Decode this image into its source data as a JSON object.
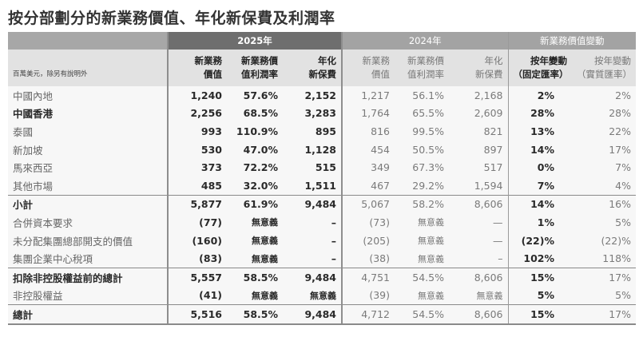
{
  "title": "按分部劃分的新業務價值、年化新保費及利潤率",
  "header": {
    "unit_note": "百萬美元，除另有說明外",
    "group_2025": "2025年",
    "group_2024": "2024年",
    "group_change": "新業務價值變動",
    "col_nbv_l1": "新業務",
    "col_nbv_l2": "價值",
    "col_margin_l1": "新業務價",
    "col_margin_l2": "值利潤率",
    "col_ape_l1": "年化",
    "col_ape_l2": "新保費",
    "col_cer_l1": "按年變動",
    "col_cer_l2": "（固定匯率）",
    "col_ar_l1": "按年變動",
    "col_ar_l2": "（實質匯率）"
  },
  "rows": [
    {
      "label": "中國內地",
      "nbv25": "1,240",
      "margin25": "57.6%",
      "ape25": "2,152",
      "nbv24": "1,217",
      "margin24": "56.1%",
      "ape24": "2,168",
      "chg_cer": "2%",
      "chg_ar": "2%"
    },
    {
      "label": "中國香港",
      "nbv25": "2,256",
      "margin25": "68.5%",
      "ape25": "3,283",
      "nbv24": "1,764",
      "margin24": "65.5%",
      "ape24": "2,609",
      "chg_cer": "28%",
      "chg_ar": "28%"
    },
    {
      "label": "泰國",
      "nbv25": "993",
      "margin25": "110.9%",
      "ape25": "895",
      "nbv24": "816",
      "margin24": "99.5%",
      "ape24": "821",
      "chg_cer": "13%",
      "chg_ar": "22%"
    },
    {
      "label": "新加坡",
      "nbv25": "530",
      "margin25": "47.0%",
      "ape25": "1,128",
      "nbv24": "454",
      "margin24": "50.5%",
      "ape24": "897",
      "chg_cer": "14%",
      "chg_ar": "17%"
    },
    {
      "label": "馬來西亞",
      "nbv25": "373",
      "margin25": "72.2%",
      "ape25": "515",
      "nbv24": "349",
      "margin24": "67.3%",
      "ape24": "517",
      "chg_cer": "0%",
      "chg_ar": "7%"
    },
    {
      "label": "其他市場",
      "nbv25": "485",
      "margin25": "32.0%",
      "ape25": "1,511",
      "nbv24": "467",
      "margin24": "29.2%",
      "ape24": "1,594",
      "chg_cer": "7%",
      "chg_ar": "4%"
    },
    {
      "label": "小計",
      "nbv25": "5,877",
      "margin25": "61.9%",
      "ape25": "9,484",
      "nbv24": "5,067",
      "margin24": "58.2%",
      "ape24": "8,606",
      "chg_cer": "14%",
      "chg_ar": "16%"
    },
    {
      "label": "合併資本要求",
      "nbv25": "(77)",
      "margin25": "無意義",
      "ape25": "–",
      "nbv24": "(73)",
      "margin24": "無意義",
      "ape24": "—",
      "chg_cer": "1%",
      "chg_ar": "5%"
    },
    {
      "label": "未分配集團總部開支的價值",
      "nbv25": "(160)",
      "margin25": "無意義",
      "ape25": "–",
      "nbv24": "(205)",
      "margin24": "無意義",
      "ape24": "—",
      "chg_cer": "(22)%",
      "chg_ar": "(22)%"
    },
    {
      "label": "集團企業中心稅項",
      "nbv25": "(83)",
      "margin25": "無意義",
      "ape25": "–",
      "nbv24": "(38)",
      "margin24": "無意義",
      "ape24": "–",
      "chg_cer": "102%",
      "chg_ar": "118%"
    },
    {
      "label": "扣除非控股權益前的總計",
      "nbv25": "5,557",
      "margin25": "58.5%",
      "ape25": "9,484",
      "nbv24": "4,751",
      "margin24": "54.5%",
      "ape24": "8,606",
      "chg_cer": "15%",
      "chg_ar": "17%"
    },
    {
      "label": "非控股權益",
      "nbv25": "(41)",
      "margin25": "無意義",
      "ape25": "無意義",
      "nbv24": "(39)",
      "margin24": "無意義",
      "ape24": "無意義",
      "chg_cer": "5%",
      "chg_ar": "5%"
    },
    {
      "label": "總計",
      "nbv25": "5,516",
      "margin25": "58.5%",
      "ape25": "9,484",
      "nbv24": "4,712",
      "margin24": "54.5%",
      "ape24": "8,606",
      "chg_cer": "15%",
      "chg_ar": "17%"
    }
  ],
  "colors": {
    "header_2025": "#6e6e6e",
    "header_other": "#a3a3a3",
    "subheader_bg": "#e2e2e2",
    "body_bg": "#f7f7f7"
  }
}
